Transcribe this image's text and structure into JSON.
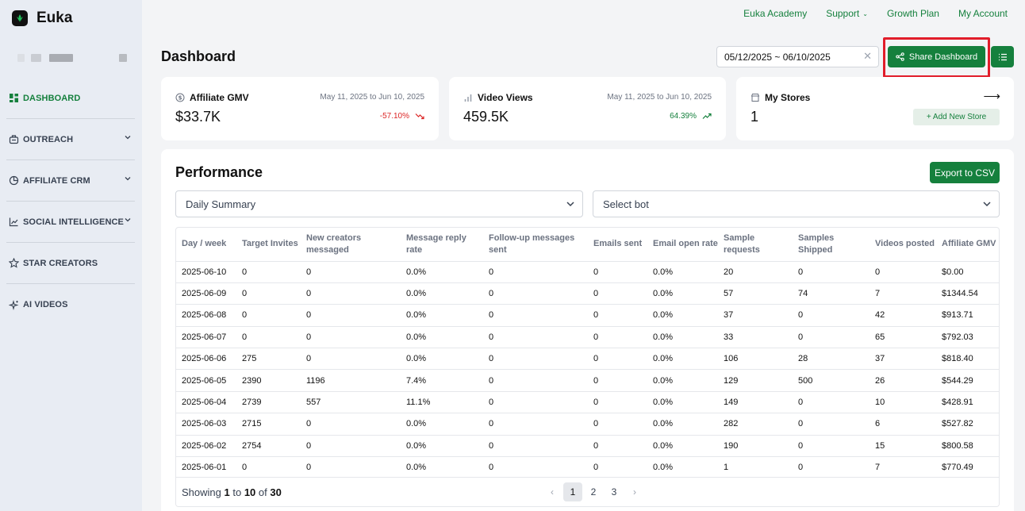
{
  "brand": {
    "name": "Euka"
  },
  "sidebar": {
    "items": [
      {
        "label": "DASHBOARD",
        "icon": "grid-icon",
        "active": true,
        "has_chevron": false
      },
      {
        "label": "OUTREACH",
        "icon": "outreach-icon",
        "active": false,
        "has_chevron": true
      },
      {
        "label": "AFFILIATE CRM",
        "icon": "pie-chart-icon",
        "active": false,
        "has_chevron": true
      },
      {
        "label": "SOCIAL INTELLIGENCE",
        "icon": "trend-chart-icon",
        "active": false,
        "has_chevron": true
      },
      {
        "label": "STAR CREATORS",
        "icon": "star-icon",
        "active": false,
        "has_chevron": false
      },
      {
        "label": "AI VIDEOS",
        "icon": "sparkle-icon",
        "active": false,
        "has_chevron": false
      }
    ]
  },
  "topnav": {
    "academy": "Euka Academy",
    "support": "Support",
    "growth": "Growth Plan",
    "account": "My Account"
  },
  "header": {
    "title": "Dashboard",
    "date_range": "05/12/2025 ~ 06/10/2025",
    "share_label": "Share Dashboard"
  },
  "cards": {
    "gmv": {
      "title": "Affiliate GMV",
      "range": "May 11, 2025 to Jun 10, 2025",
      "value": "$33.7K",
      "change": "-57.10%",
      "change_color": "#dc2626"
    },
    "views": {
      "title": "Video Views",
      "range": "May 11, 2025 to Jun 10, 2025",
      "value": "459.5K",
      "change": "64.39%",
      "change_color": "#15803d"
    },
    "stores": {
      "title": "My Stores",
      "value": "1",
      "add_label": "+ Add New Store"
    }
  },
  "performance": {
    "title": "Performance",
    "export_label": "Export to CSV",
    "summary_select": "Daily Summary",
    "bot_select": "Select bot",
    "columns": [
      "Day / week",
      "Target Invites",
      "New creators messaged",
      "Message reply rate",
      "Follow-up messages sent",
      "Emails sent",
      "Email open rate",
      "Sample requests",
      "Samples Shipped",
      "Videos posted",
      "Affiliate GMV"
    ],
    "rows": [
      [
        "2025-06-10",
        "0",
        "0",
        "0.0%",
        "0",
        "0",
        "0.0%",
        "20",
        "0",
        "0",
        "$0.00"
      ],
      [
        "2025-06-09",
        "0",
        "0",
        "0.0%",
        "0",
        "0",
        "0.0%",
        "57",
        "74",
        "7",
        "$1344.54"
      ],
      [
        "2025-06-08",
        "0",
        "0",
        "0.0%",
        "0",
        "0",
        "0.0%",
        "37",
        "0",
        "42",
        "$913.71"
      ],
      [
        "2025-06-07",
        "0",
        "0",
        "0.0%",
        "0",
        "0",
        "0.0%",
        "33",
        "0",
        "65",
        "$792.03"
      ],
      [
        "2025-06-06",
        "275",
        "0",
        "0.0%",
        "0",
        "0",
        "0.0%",
        "106",
        "28",
        "37",
        "$818.40"
      ],
      [
        "2025-06-05",
        "2390",
        "1196",
        "7.4%",
        "0",
        "0",
        "0.0%",
        "129",
        "500",
        "26",
        "$544.29"
      ],
      [
        "2025-06-04",
        "2739",
        "557",
        "11.1%",
        "0",
        "0",
        "0.0%",
        "149",
        "0",
        "10",
        "$428.91"
      ],
      [
        "2025-06-03",
        "2715",
        "0",
        "0.0%",
        "0",
        "0",
        "0.0%",
        "282",
        "0",
        "6",
        "$527.82"
      ],
      [
        "2025-06-02",
        "2754",
        "0",
        "0.0%",
        "0",
        "0",
        "0.0%",
        "190",
        "0",
        "15",
        "$800.58"
      ],
      [
        "2025-06-01",
        "0",
        "0",
        "0.0%",
        "0",
        "0",
        "0.0%",
        "1",
        "0",
        "7",
        "$770.49"
      ]
    ],
    "pagination": {
      "showing_prefix": "Showing",
      "from": "1",
      "to_word": "to",
      "to": "10",
      "of_word": "of",
      "total": "30",
      "pages": [
        "1",
        "2",
        "3"
      ],
      "current": "1"
    }
  }
}
